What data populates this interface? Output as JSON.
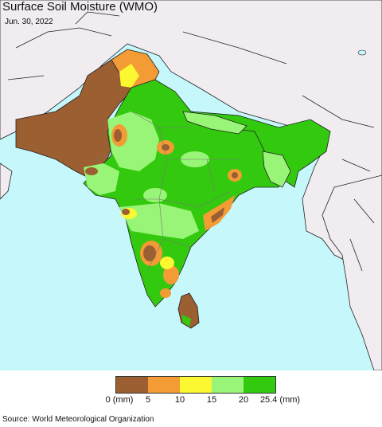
{
  "header": {
    "title": "Surface Soil Moisture (WMO)",
    "date": "Jun. 30, 2022"
  },
  "map": {
    "region": "South Asia",
    "colors": {
      "ocean": "#c6f7fb",
      "land_outside": "#f0ecf0",
      "border": "#222222"
    }
  },
  "legend": {
    "unit": "(mm)",
    "ticks": [
      "0 (mm)",
      "5",
      "10",
      "15",
      "20",
      "25.4 (mm)"
    ],
    "colors": [
      "#9b5f31",
      "#f39b35",
      "#fbf832",
      "#98f577",
      "#33c90f"
    ]
  },
  "footer": {
    "source": "Source: World Meteorological Organization"
  }
}
